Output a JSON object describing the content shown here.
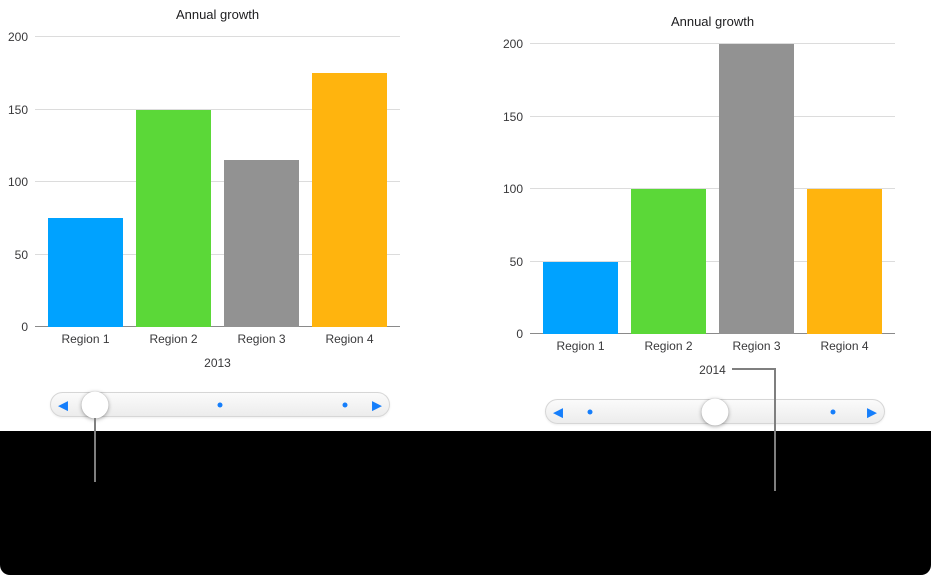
{
  "chart_data": [
    {
      "type": "bar",
      "title": "Annual growth",
      "categories": [
        "Region 1",
        "Region 2",
        "Region 3",
        "Region 4"
      ],
      "values": [
        75,
        150,
        115,
        175
      ],
      "xlabel": "2013",
      "ylabel": "",
      "ylim": [
        0,
        200
      ],
      "y_ticks": [
        0,
        50,
        100,
        150,
        200
      ],
      "bar_colors": [
        "#00a2ff",
        "#5bd838",
        "#929292",
        "#ffb40e"
      ],
      "grid": true,
      "legend": false
    },
    {
      "type": "bar",
      "title": "Annual growth",
      "categories": [
        "Region 1",
        "Region 2",
        "Region 3",
        "Region 4"
      ],
      "values": [
        50,
        100,
        200,
        100
      ],
      "xlabel": "2014",
      "ylabel": "",
      "ylim": [
        0,
        200
      ],
      "y_ticks": [
        0,
        50,
        100,
        150,
        200
      ],
      "bar_colors": [
        "#00a2ff",
        "#5bd838",
        "#929292",
        "#ffb40e"
      ],
      "grid": true,
      "legend": false
    }
  ],
  "sliders": [
    {
      "handle_pct": 13,
      "dots_pct": [
        50,
        87
      ],
      "prev_icon": "◀",
      "next_icon": "▶"
    },
    {
      "handle_pct": 50,
      "dots_pct": [
        13,
        85
      ],
      "prev_icon": "◀",
      "next_icon": "▶"
    }
  ],
  "colors": {
    "slider_accent": "#157efb",
    "gridline": "#dcdcdc",
    "axis_line": "#8a8a8a",
    "footer_bg": "#000000"
  }
}
